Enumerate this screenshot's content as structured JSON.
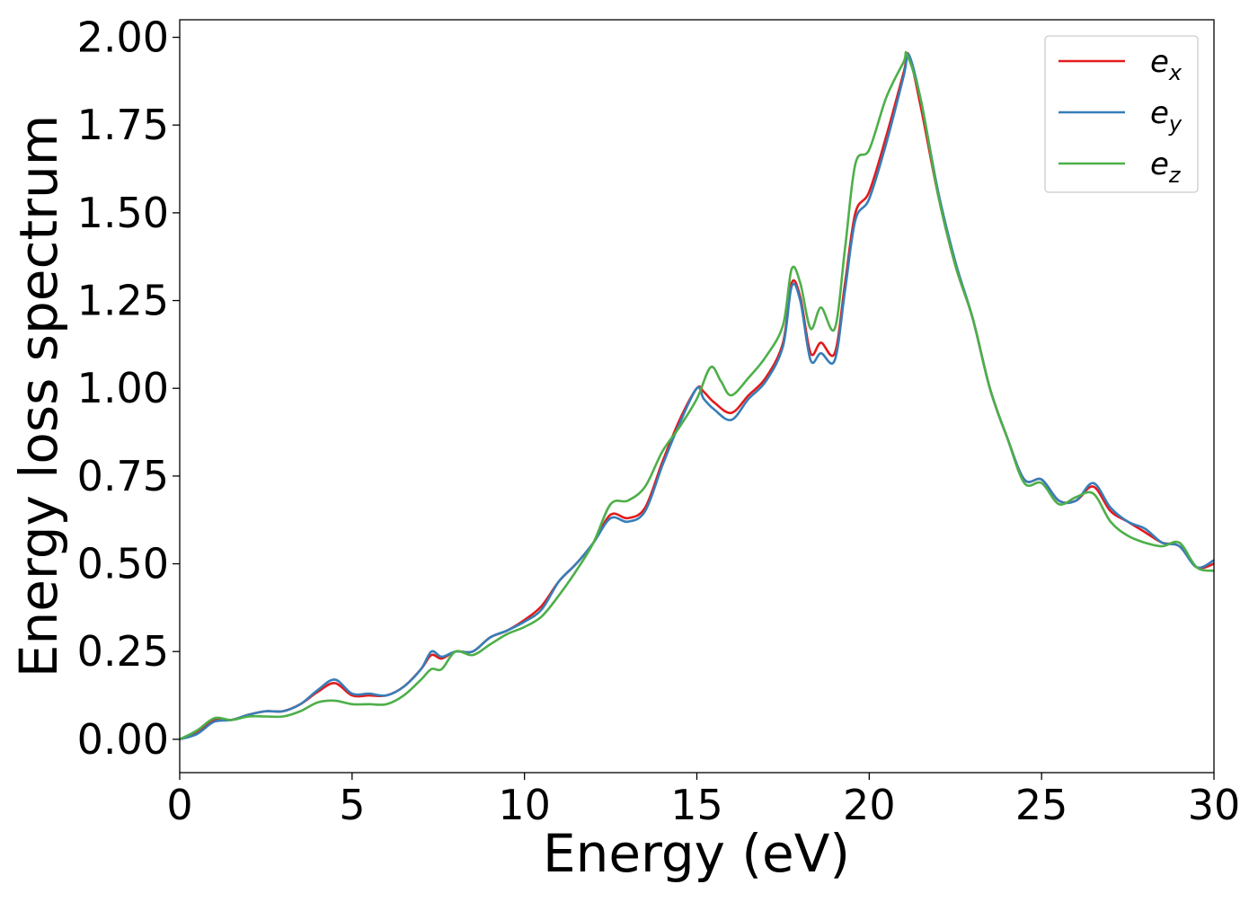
{
  "chart_data": {
    "type": "line",
    "title": "",
    "xlabel": "Energy (eV)",
    "ylabel": "Energy loss spectrum",
    "xlim": [
      0,
      30
    ],
    "ylim": [
      -0.095,
      2.05
    ],
    "xticks": [
      0,
      5,
      10,
      15,
      20,
      25,
      30
    ],
    "xtick_labels": [
      "0",
      "5",
      "10",
      "15",
      "20",
      "25",
      "30"
    ],
    "yticks": [
      0,
      0.25,
      0.5,
      0.75,
      1.0,
      1.25,
      1.5,
      1.75,
      2.0
    ],
    "ytick_labels": [
      "0.00",
      "0.25",
      "0.50",
      "0.75",
      "1.00",
      "1.25",
      "1.50",
      "1.75",
      "2.00"
    ],
    "grid": false,
    "legend_position": "top-right",
    "series": [
      {
        "name": "e_x",
        "label_base": "e",
        "label_sub": "x",
        "color": "#e41a1c",
        "x": [
          0,
          0.5,
          1,
          1.5,
          2,
          2.5,
          3,
          3.5,
          4,
          4.5,
          5,
          5.5,
          6,
          6.5,
          7,
          7.3,
          7.6,
          8,
          8.5,
          9,
          9.5,
          10,
          10.5,
          11,
          11.5,
          12,
          12.5,
          13,
          13.5,
          14,
          14.5,
          15,
          15.2,
          15.5,
          16,
          16.5,
          17,
          17.5,
          17.75,
          18,
          18.3,
          18.6,
          19,
          19.3,
          19.6,
          20,
          20.5,
          21,
          21.15,
          21.5,
          22,
          22.5,
          23,
          23.5,
          24,
          24.5,
          25,
          25.5,
          26,
          26.5,
          27,
          27.5,
          28,
          28.5,
          29,
          29.5,
          30
        ],
        "y": [
          0,
          0.02,
          0.055,
          0.055,
          0.07,
          0.08,
          0.08,
          0.1,
          0.135,
          0.16,
          0.125,
          0.125,
          0.125,
          0.15,
          0.2,
          0.24,
          0.23,
          0.25,
          0.25,
          0.29,
          0.31,
          0.34,
          0.38,
          0.45,
          0.5,
          0.56,
          0.64,
          0.63,
          0.66,
          0.79,
          0.91,
          1.0,
          0.99,
          0.96,
          0.93,
          0.98,
          1.03,
          1.13,
          1.3,
          1.26,
          1.1,
          1.13,
          1.1,
          1.3,
          1.5,
          1.56,
          1.72,
          1.9,
          1.95,
          1.8,
          1.55,
          1.35,
          1.2,
          1.0,
          0.86,
          0.74,
          0.74,
          0.68,
          0.68,
          0.72,
          0.65,
          0.62,
          0.59,
          0.56,
          0.55,
          0.49,
          0.5
        ]
      },
      {
        "name": "e_y",
        "label_base": "e",
        "label_sub": "y",
        "color": "#377eb8",
        "x": [
          0,
          0.5,
          1,
          1.5,
          2,
          2.5,
          3,
          3.5,
          4,
          4.5,
          5,
          5.5,
          6,
          6.5,
          7,
          7.3,
          7.6,
          8,
          8.5,
          9,
          9.5,
          10,
          10.5,
          11,
          11.5,
          12,
          12.5,
          13,
          13.5,
          14,
          14.5,
          15,
          15.2,
          15.5,
          16,
          16.5,
          17,
          17.5,
          17.75,
          18,
          18.3,
          18.6,
          19,
          19.3,
          19.6,
          20,
          20.5,
          21,
          21.15,
          21.5,
          22,
          22.5,
          23,
          23.5,
          24,
          24.5,
          25,
          25.5,
          26,
          26.5,
          27,
          27.5,
          28,
          28.5,
          29,
          29.5,
          30
        ],
        "y": [
          0,
          0.015,
          0.05,
          0.055,
          0.07,
          0.08,
          0.08,
          0.1,
          0.14,
          0.17,
          0.13,
          0.13,
          0.125,
          0.15,
          0.2,
          0.25,
          0.235,
          0.25,
          0.25,
          0.29,
          0.31,
          0.335,
          0.37,
          0.45,
          0.5,
          0.56,
          0.63,
          0.62,
          0.65,
          0.78,
          0.9,
          1.0,
          0.97,
          0.94,
          0.91,
          0.97,
          1.02,
          1.12,
          1.29,
          1.25,
          1.08,
          1.1,
          1.08,
          1.28,
          1.48,
          1.54,
          1.7,
          1.89,
          1.95,
          1.82,
          1.56,
          1.36,
          1.2,
          1.0,
          0.86,
          0.74,
          0.74,
          0.68,
          0.68,
          0.73,
          0.66,
          0.62,
          0.6,
          0.56,
          0.55,
          0.49,
          0.51
        ]
      },
      {
        "name": "e_z",
        "label_base": "e",
        "label_sub": "z",
        "color": "#4daf4a",
        "x": [
          0,
          0.5,
          1,
          1.5,
          2,
          2.5,
          3,
          3.5,
          4,
          4.5,
          5,
          5.5,
          6,
          6.5,
          7,
          7.3,
          7.6,
          8,
          8.5,
          9,
          9.5,
          10,
          10.5,
          11,
          11.5,
          12,
          12.5,
          13,
          13.5,
          14,
          14.5,
          15,
          15.4,
          15.7,
          16,
          16.5,
          17,
          17.5,
          17.75,
          18,
          18.3,
          18.6,
          19,
          19.3,
          19.6,
          20,
          20.5,
          21,
          21.1,
          21.5,
          22,
          22.5,
          23,
          23.5,
          24,
          24.5,
          25,
          25.5,
          26,
          26.5,
          27,
          27.5,
          28,
          28.5,
          29,
          29.5,
          30
        ],
        "y": [
          0,
          0.025,
          0.06,
          0.055,
          0.065,
          0.065,
          0.065,
          0.08,
          0.105,
          0.11,
          0.1,
          0.1,
          0.1,
          0.125,
          0.17,
          0.2,
          0.2,
          0.25,
          0.24,
          0.27,
          0.3,
          0.32,
          0.35,
          0.41,
          0.48,
          0.56,
          0.67,
          0.68,
          0.72,
          0.82,
          0.89,
          0.97,
          1.06,
          1.02,
          0.98,
          1.03,
          1.09,
          1.18,
          1.34,
          1.3,
          1.17,
          1.23,
          1.17,
          1.4,
          1.64,
          1.68,
          1.83,
          1.93,
          1.95,
          1.82,
          1.55,
          1.35,
          1.2,
          1.0,
          0.86,
          0.73,
          0.73,
          0.67,
          0.69,
          0.7,
          0.62,
          0.58,
          0.56,
          0.55,
          0.56,
          0.49,
          0.48
        ]
      }
    ]
  }
}
